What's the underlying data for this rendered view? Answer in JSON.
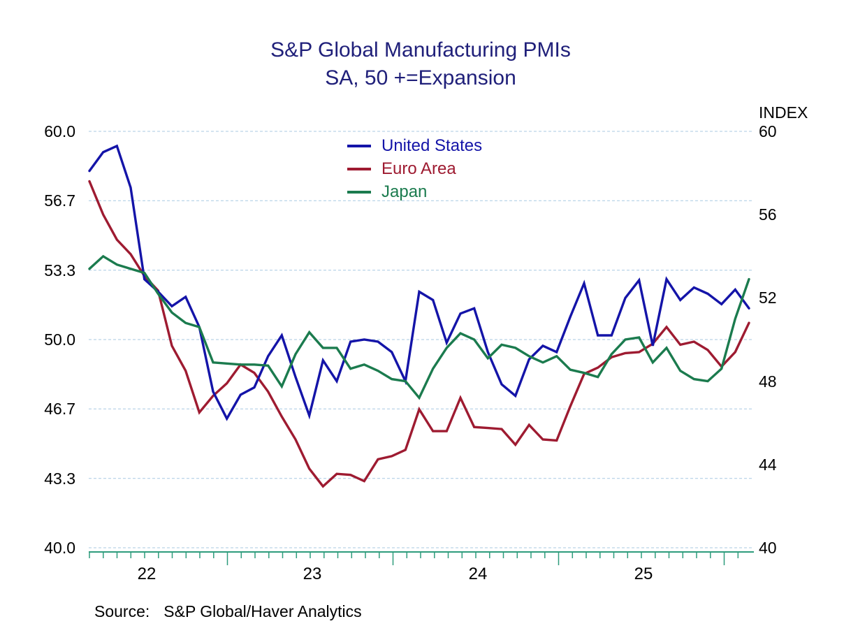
{
  "chart_data": {
    "type": "line",
    "title": "S&P Global Manufacturing PMIs",
    "subtitle": "SA, 50 +=Expansion",
    "right_axis_title": "INDEX",
    "ylim": [
      40,
      60
    ],
    "grid": "dashed horizontal gridlines at left tick values",
    "legend_position": "top-center inside plot",
    "left_ticks": [
      60.0,
      56.667,
      53.333,
      50.0,
      46.667,
      43.333,
      40.0
    ],
    "left_tick_labels": [
      "60.0",
      "56.7",
      "53.3",
      "50.0",
      "46.7",
      "43.3",
      "40.0"
    ],
    "right_ticks": [
      60,
      56,
      52,
      48,
      44,
      40
    ],
    "right_tick_labels": [
      "60",
      "56",
      "52",
      "48",
      "44",
      "40"
    ],
    "x_tick_labels": [
      "22",
      "23",
      "24",
      "25"
    ],
    "x_axis_note": "monthly points, minor tick per month, long tick at mid-year",
    "series": [
      {
        "name": "United States",
        "color": "#1414A8",
        "values": [
          58.1,
          59.0,
          59.3,
          57.3,
          52.9,
          52.3,
          51.6,
          52.05,
          50.6,
          47.5,
          46.2,
          47.35,
          47.7,
          49.2,
          50.2,
          48.2,
          46.35,
          49.0,
          48.0,
          49.9,
          50.0,
          49.9,
          49.4,
          48.0,
          52.3,
          51.9,
          49.85,
          51.25,
          51.5,
          49.4,
          47.85,
          47.3,
          49.05,
          49.7,
          49.4,
          51.1,
          52.7,
          50.2,
          50.2,
          52.0,
          52.85,
          49.7,
          52.9,
          51.9,
          52.5,
          52.2,
          51.7,
          52.4,
          51.5
        ]
      },
      {
        "name": "Euro Area",
        "color": "#9E1B31",
        "values": [
          57.6,
          56.0,
          54.8,
          54.1,
          53.05,
          52.35,
          49.7,
          48.5,
          46.5,
          47.3,
          47.9,
          48.8,
          48.4,
          47.5,
          46.3,
          45.2,
          43.8,
          42.95,
          43.55,
          43.5,
          43.2,
          44.25,
          44.4,
          44.7,
          46.65,
          45.6,
          45.6,
          47.2,
          45.8,
          45.75,
          45.7,
          44.95,
          45.9,
          45.2,
          45.15,
          46.8,
          48.35,
          48.65,
          49.15,
          49.35,
          49.4,
          49.8,
          50.6,
          49.75,
          49.9,
          49.5,
          48.7,
          49.4,
          50.8
        ]
      },
      {
        "name": "Japan",
        "color": "#1B7B4E",
        "values": [
          53.4,
          54.0,
          53.6,
          53.4,
          53.2,
          52.2,
          51.3,
          50.8,
          50.6,
          48.9,
          48.85,
          48.8,
          48.8,
          48.75,
          47.75,
          49.3,
          50.35,
          49.6,
          49.6,
          48.6,
          48.8,
          48.5,
          48.1,
          48.0,
          47.2,
          48.6,
          49.6,
          50.3,
          50.0,
          49.1,
          49.75,
          49.6,
          49.2,
          48.9,
          49.2,
          48.55,
          48.4,
          48.2,
          49.3,
          50.0,
          50.1,
          48.9,
          49.6,
          48.5,
          48.1,
          48.0,
          48.6,
          51.0,
          52.9
        ]
      }
    ]
  },
  "source": {
    "prefix": "Source:",
    "text": "S&P Global/Haver Analytics"
  },
  "colors": {
    "title": "#20207A",
    "gridline": "#A8C9E2",
    "axis": "#2E9C7C",
    "text": "#000000",
    "background": "#FFFFFF"
  }
}
